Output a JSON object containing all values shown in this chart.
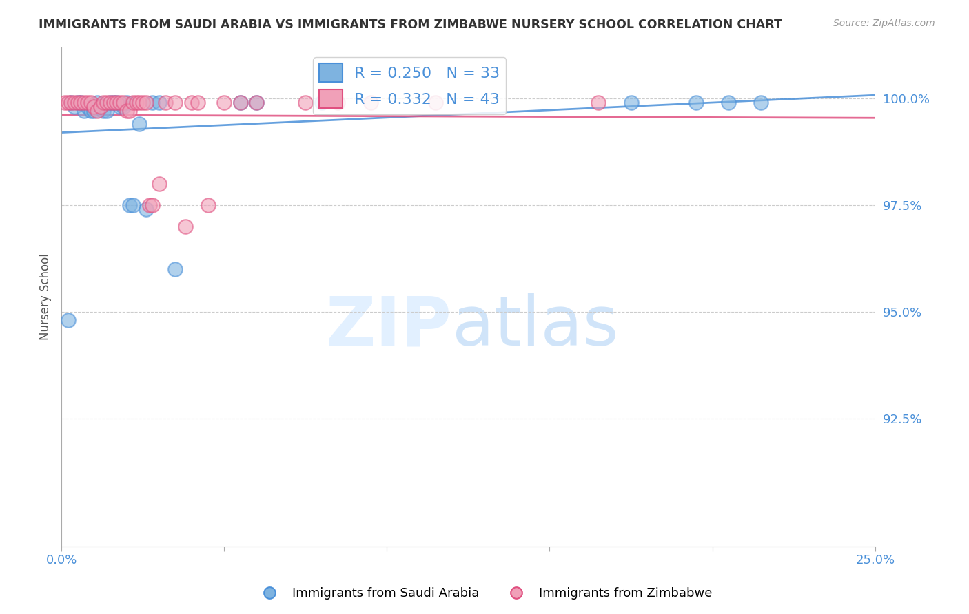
{
  "title": "IMMIGRANTS FROM SAUDI ARABIA VS IMMIGRANTS FROM ZIMBABWE NURSERY SCHOOL CORRELATION CHART",
  "source": "Source: ZipAtlas.com",
  "ylabel": "Nursery School",
  "ytick_labels": [
    "100.0%",
    "97.5%",
    "95.0%",
    "92.5%"
  ],
  "ytick_values": [
    1.0,
    0.975,
    0.95,
    0.925
  ],
  "xlim": [
    0.0,
    0.25
  ],
  "ylim": [
    0.895,
    1.012
  ],
  "legend_blue_R": 0.25,
  "legend_blue_N": 33,
  "legend_pink_R": 0.332,
  "legend_pink_N": 43,
  "blue_color": "#7EB3E0",
  "pink_color": "#F0A0B8",
  "blue_line_color": "#4A90D9",
  "pink_line_color": "#E05080",
  "background_color": "#FFFFFF",
  "grid_color": "#CCCCCC",
  "saudi_x": [
    0.002,
    0.003,
    0.004,
    0.005,
    0.006,
    0.007,
    0.008,
    0.009,
    0.01,
    0.011,
    0.012,
    0.013,
    0.014,
    0.015,
    0.016,
    0.017,
    0.018,
    0.019,
    0.02,
    0.021,
    0.022,
    0.024,
    0.026,
    0.028,
    0.03,
    0.035,
    0.055,
    0.06,
    0.08,
    0.175,
    0.195,
    0.205,
    0.215
  ],
  "saudi_y": [
    0.948,
    0.999,
    0.998,
    0.999,
    0.999,
    0.997,
    0.998,
    0.997,
    0.997,
    0.999,
    0.998,
    0.997,
    0.997,
    0.999,
    0.999,
    0.999,
    0.998,
    0.998,
    0.999,
    0.975,
    0.975,
    0.994,
    0.974,
    0.999,
    0.999,
    0.96,
    0.999,
    0.999,
    0.999,
    0.999,
    0.999,
    0.999,
    0.999
  ],
  "zimbabwe_x": [
    0.001,
    0.002,
    0.003,
    0.004,
    0.005,
    0.006,
    0.007,
    0.008,
    0.009,
    0.01,
    0.011,
    0.012,
    0.013,
    0.014,
    0.015,
    0.016,
    0.017,
    0.018,
    0.019,
    0.02,
    0.021,
    0.022,
    0.023,
    0.024,
    0.025,
    0.026,
    0.027,
    0.028,
    0.03,
    0.032,
    0.035,
    0.038,
    0.04,
    0.042,
    0.045,
    0.05,
    0.055,
    0.06,
    0.075,
    0.085,
    0.095,
    0.115,
    0.165
  ],
  "zimbabwe_y": [
    0.999,
    0.999,
    0.999,
    0.999,
    0.999,
    0.999,
    0.999,
    0.999,
    0.999,
    0.998,
    0.997,
    0.998,
    0.999,
    0.999,
    0.999,
    0.999,
    0.999,
    0.999,
    0.999,
    0.997,
    0.997,
    0.999,
    0.999,
    0.999,
    0.999,
    0.999,
    0.975,
    0.975,
    0.98,
    0.999,
    0.999,
    0.97,
    0.999,
    0.999,
    0.975,
    0.999,
    0.999,
    0.999,
    0.999,
    0.999,
    0.999,
    0.999,
    0.999
  ]
}
